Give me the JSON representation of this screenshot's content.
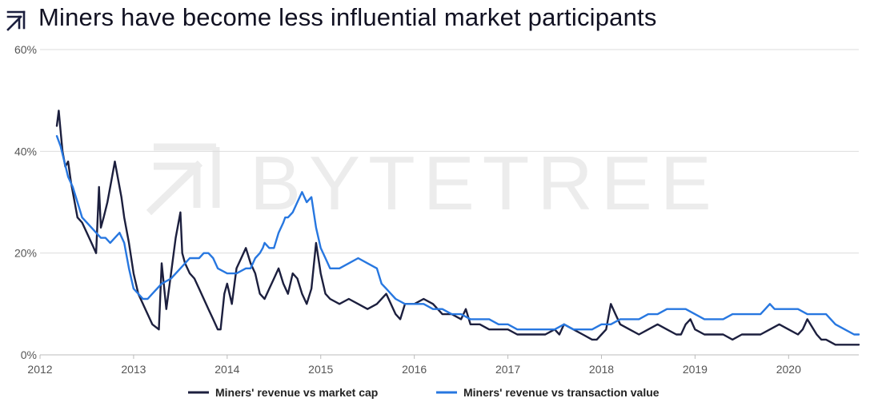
{
  "header": {
    "title": "Miners have become less influential market participants",
    "logo_icon": "bytetree-arrows-icon"
  },
  "watermark": {
    "text": "BYTETREE"
  },
  "colors": {
    "series1": "#1c1f3e",
    "series2": "#2777e0",
    "grid": "#dddddd",
    "axis": "#bbbbbb"
  },
  "chart_data": {
    "type": "line",
    "title": "Miners have become less influential market participants",
    "xlabel": "",
    "ylabel": "",
    "xlim": [
      2012,
      2020.75
    ],
    "ylim": [
      0,
      60
    ],
    "x_ticks": [
      2012,
      2013,
      2014,
      2015,
      2016,
      2017,
      2018,
      2019,
      2020
    ],
    "x_tick_labels": [
      "2012",
      "2013",
      "2014",
      "2015",
      "2016",
      "2017",
      "2018",
      "2019",
      "2020"
    ],
    "y_ticks": [
      0,
      20,
      40,
      60
    ],
    "y_tick_labels": [
      "0%",
      "20%",
      "40%",
      "60%"
    ],
    "grid": "horizontal",
    "legend_position": "bottom-center",
    "series": [
      {
        "name": "Miners' revenue vs market cap",
        "color": "#1c1f3e",
        "x": [
          2012.18,
          2012.2,
          2012.22,
          2012.24,
          2012.27,
          2012.3,
          2012.33,
          2012.36,
          2012.4,
          2012.45,
          2012.5,
          2012.55,
          2012.6,
          2012.63,
          2012.65,
          2012.68,
          2012.72,
          2012.76,
          2012.8,
          2012.83,
          2012.87,
          2012.9,
          2012.95,
          2013.0,
          2013.05,
          2013.1,
          2013.15,
          2013.2,
          2013.27,
          2013.3,
          2013.35,
          2013.4,
          2013.45,
          2013.5,
          2013.52,
          2013.55,
          2013.6,
          2013.65,
          2013.7,
          2013.75,
          2013.8,
          2013.85,
          2013.9,
          2013.93,
          2013.97,
          2014.0,
          2014.05,
          2014.1,
          2014.15,
          2014.2,
          2014.25,
          2014.3,
          2014.35,
          2014.4,
          2014.45,
          2014.5,
          2014.55,
          2014.6,
          2014.65,
          2014.7,
          2014.75,
          2014.8,
          2014.85,
          2014.9,
          2014.95,
          2015.0,
          2015.05,
          2015.1,
          2015.2,
          2015.3,
          2015.4,
          2015.5,
          2015.6,
          2015.7,
          2015.75,
          2015.8,
          2015.85,
          2015.9,
          2016.0,
          2016.1,
          2016.2,
          2016.3,
          2016.4,
          2016.5,
          2016.55,
          2016.6,
          2016.7,
          2016.8,
          2016.9,
          2017.0,
          2017.1,
          2017.2,
          2017.3,
          2017.4,
          2017.5,
          2017.55,
          2017.6,
          2017.7,
          2017.8,
          2017.9,
          2017.95,
          2018.0,
          2018.05,
          2018.1,
          2018.15,
          2018.2,
          2018.3,
          2018.4,
          2018.5,
          2018.6,
          2018.7,
          2018.8,
          2018.85,
          2018.9,
          2018.95,
          2019.0,
          2019.1,
          2019.2,
          2019.3,
          2019.4,
          2019.5,
          2019.6,
          2019.7,
          2019.8,
          2019.9,
          2020.0,
          2020.1,
          2020.15,
          2020.2,
          2020.3,
          2020.35,
          2020.4,
          2020.5,
          2020.6,
          2020.7,
          2020.75
        ],
        "values": [
          45,
          48,
          44,
          40,
          37,
          38,
          34,
          31,
          27,
          26,
          24,
          22,
          20,
          33,
          25,
          27,
          30,
          34,
          38,
          35,
          31,
          27,
          22,
          16,
          12,
          10,
          8,
          6,
          5,
          18,
          9,
          16,
          23,
          28,
          20,
          18,
          16,
          15,
          13,
          11,
          9,
          7,
          5,
          5,
          12,
          14,
          10,
          17,
          19,
          21,
          18,
          16,
          12,
          11,
          13,
          15,
          17,
          14,
          12,
          16,
          15,
          12,
          10,
          13,
          22,
          16,
          12,
          11,
          10,
          11,
          10,
          9,
          10,
          12,
          10,
          8,
          7,
          10,
          10,
          11,
          10,
          8,
          8,
          7,
          9,
          6,
          6,
          5,
          5,
          5,
          4,
          4,
          4,
          4,
          5,
          4,
          6,
          5,
          4,
          3,
          3,
          4,
          5,
          10,
          8,
          6,
          5,
          4,
          5,
          6,
          5,
          4,
          4,
          6,
          7,
          5,
          4,
          4,
          4,
          3,
          4,
          4,
          4,
          5,
          6,
          5,
          4,
          5,
          7,
          4,
          3,
          3,
          2,
          2,
          2,
          2
        ]
      },
      {
        "name": "Miners' revenue vs transaction value",
        "color": "#2777e0",
        "x": [
          2012.18,
          2012.22,
          2012.26,
          2012.3,
          2012.35,
          2012.4,
          2012.45,
          2012.5,
          2012.55,
          2012.6,
          2012.65,
          2012.7,
          2012.75,
          2012.8,
          2012.85,
          2012.9,
          2012.95,
          2013.0,
          2013.05,
          2013.1,
          2013.15,
          2013.2,
          2013.3,
          2013.4,
          2013.5,
          2013.6,
          2013.7,
          2013.75,
          2013.8,
          2013.85,
          2013.9,
          2014.0,
          2014.1,
          2014.2,
          2014.25,
          2014.3,
          2014.35,
          2014.38,
          2014.4,
          2014.45,
          2014.5,
          2014.55,
          2014.6,
          2014.62,
          2014.65,
          2014.7,
          2014.75,
          2014.8,
          2014.85,
          2014.9,
          2014.95,
          2015.0,
          2015.05,
          2015.1,
          2015.2,
          2015.3,
          2015.4,
          2015.5,
          2015.6,
          2015.65,
          2015.7,
          2015.75,
          2015.8,
          2015.9,
          2016.0,
          2016.1,
          2016.2,
          2016.3,
          2016.4,
          2016.5,
          2016.6,
          2016.7,
          2016.8,
          2016.9,
          2017.0,
          2017.1,
          2017.2,
          2017.3,
          2017.4,
          2017.5,
          2017.6,
          2017.7,
          2017.8,
          2017.9,
          2018.0,
          2018.1,
          2018.2,
          2018.3,
          2018.4,
          2018.5,
          2018.6,
          2018.7,
          2018.8,
          2018.85,
          2018.9,
          2019.0,
          2019.1,
          2019.2,
          2019.3,
          2019.4,
          2019.5,
          2019.6,
          2019.7,
          2019.75,
          2019.8,
          2019.85,
          2019.9,
          2020.0,
          2020.1,
          2020.2,
          2020.3,
          2020.4,
          2020.5,
          2020.6,
          2020.7,
          2020.75
        ],
        "values": [
          43,
          41,
          38,
          35,
          33,
          30,
          27,
          26,
          25,
          24,
          23,
          23,
          22,
          23,
          24,
          22,
          17,
          13,
          12,
          11,
          11,
          12,
          14,
          15,
          17,
          19,
          19,
          20,
          20,
          19,
          17,
          16,
          16,
          17,
          17,
          19,
          20,
          21,
          22,
          21,
          21,
          24,
          26,
          27,
          27,
          28,
          30,
          32,
          30,
          31,
          25,
          21,
          19,
          17,
          17,
          18,
          19,
          18,
          17,
          14,
          13,
          12,
          11,
          10,
          10,
          10,
          9,
          9,
          8,
          8,
          7,
          7,
          7,
          6,
          6,
          5,
          5,
          5,
          5,
          5,
          6,
          5,
          5,
          5,
          6,
          6,
          7,
          7,
          7,
          8,
          8,
          9,
          9,
          9,
          9,
          8,
          7,
          7,
          7,
          8,
          8,
          8,
          8,
          9,
          10,
          9,
          9,
          9,
          9,
          8,
          8,
          8,
          6,
          5,
          4,
          4
        ]
      }
    ]
  }
}
